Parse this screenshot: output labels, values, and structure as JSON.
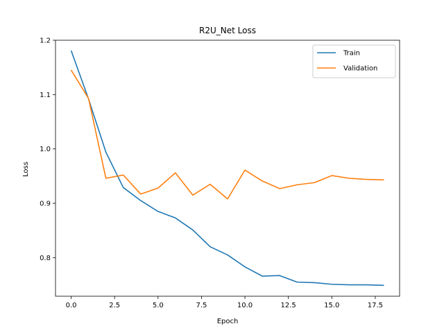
{
  "chart_data": {
    "type": "line",
    "title": "R2U_Net Loss",
    "xlabel": "Epoch",
    "ylabel": "Loss",
    "xlim": [
      -0.9,
      18.9
    ],
    "ylim": [
      0.729,
      1.2
    ],
    "xticks": [
      0.0,
      2.5,
      5.0,
      7.5,
      10.0,
      12.5,
      15.0,
      17.5
    ],
    "xtick_labels": [
      "0.0",
      "2.5",
      "5.0",
      "7.5",
      "10.0",
      "12.5",
      "15.0",
      "17.5"
    ],
    "yticks": [
      0.8,
      0.9,
      1.0,
      1.1,
      1.2
    ],
    "ytick_labels": [
      "0.8",
      "0.9",
      "1.0",
      "1.1",
      "1.2"
    ],
    "grid": false,
    "legend_position": "top-right",
    "x": [
      0,
      1,
      2,
      3,
      4,
      5,
      6,
      7,
      8,
      9,
      10,
      11,
      12,
      13,
      14,
      15,
      16,
      17,
      18
    ],
    "series": [
      {
        "name": "Train",
        "color": "#1f77b4",
        "values": [
          1.181,
          1.092,
          0.994,
          0.929,
          0.905,
          0.885,
          0.873,
          0.851,
          0.82,
          0.805,
          0.783,
          0.766,
          0.767,
          0.755,
          0.754,
          0.751,
          0.75,
          0.75,
          0.749
        ]
      },
      {
        "name": "Validation",
        "color": "#ff7f0e",
        "values": [
          1.145,
          1.093,
          0.946,
          0.952,
          0.917,
          0.928,
          0.956,
          0.915,
          0.935,
          0.908,
          0.961,
          0.941,
          0.927,
          0.934,
          0.938,
          0.951,
          0.946,
          0.944,
          0.943
        ]
      }
    ]
  }
}
